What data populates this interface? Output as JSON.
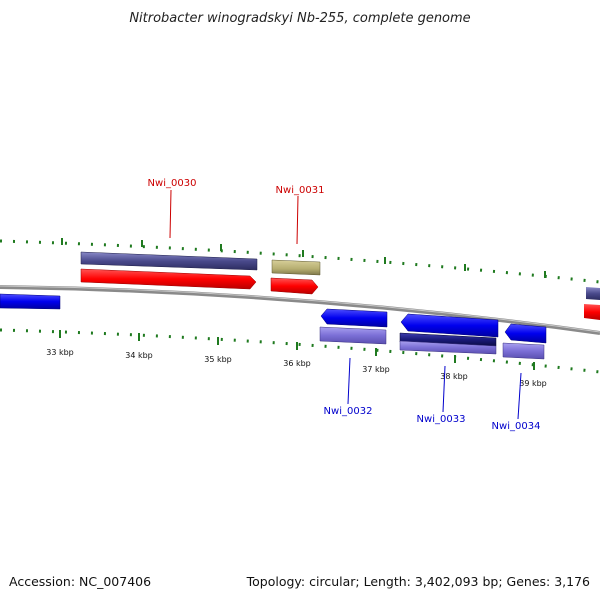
{
  "title": "Nitrobacter winogradskyi Nb-255, complete genome",
  "footer": {
    "accession": "Accession: NC_007406",
    "summary": "Topology: circular; Length: 3,402,093 bp; Genes: 3,176"
  },
  "scale": {
    "ticks": [
      "33 kbp",
      "34 kbp",
      "35 kbp",
      "36 kbp",
      "37 kbp",
      "38 kbp",
      "39 kbp"
    ]
  },
  "genes": {
    "top": [
      "Nwi_0030",
      "Nwi_0031"
    ],
    "bottom": [
      "Nwi_0032",
      "Nwi_0033",
      "Nwi_0034"
    ]
  },
  "colors": {
    "forward_gene": "#ff0000",
    "reverse_gene": "#0000ee",
    "forward_feature": "#4a4a8c",
    "pseudo_feature": "#b5ad70",
    "reverse_feature": "#7b6fd6",
    "dark_feature": "#1a1a7a",
    "tick": "#1f7a1f",
    "backbone": "#888888"
  }
}
